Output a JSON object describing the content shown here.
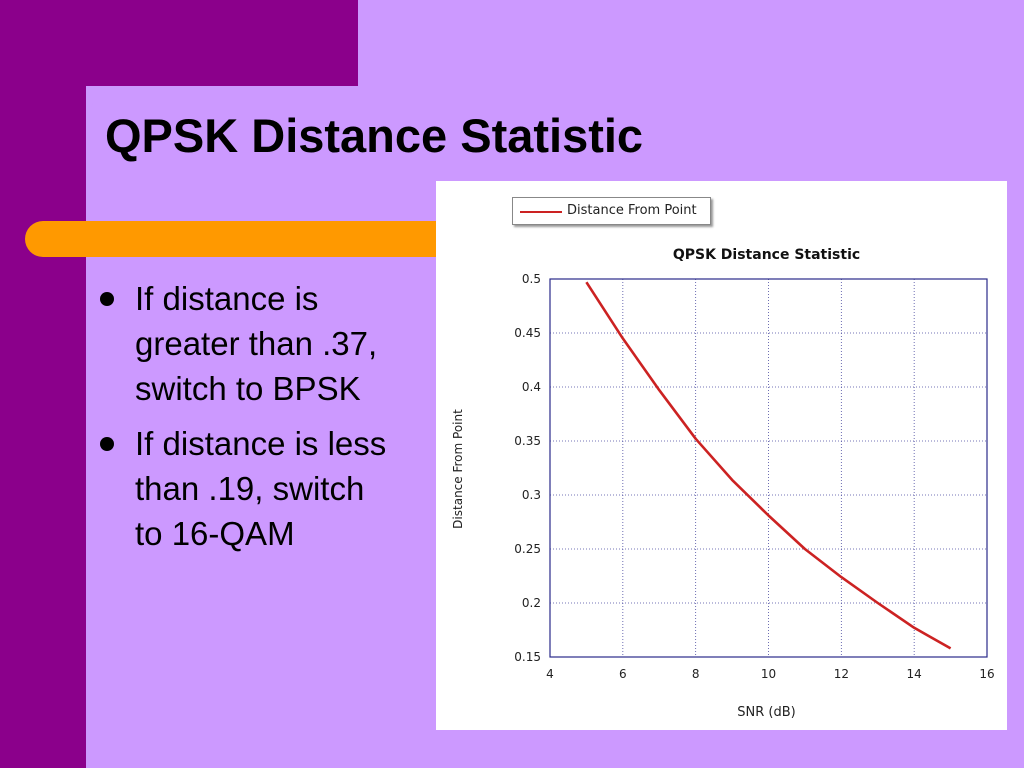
{
  "slide": {
    "title": "QPSK Distance Statistic",
    "bullets": [
      "If distance is greater than .37, switch to BPSK",
      "If distance is less than .19, switch to 16-QAM"
    ]
  },
  "colors": {
    "background": "#cc99ff",
    "band": "#8b008b",
    "accent_bar": "#ff9900",
    "series_line": "#cc2222"
  },
  "chart_data": {
    "type": "line",
    "title": "QPSK Distance Statistic",
    "xlabel": "SNR (dB)",
    "ylabel": "Distance From Point",
    "xlim": [
      4,
      16
    ],
    "ylim": [
      0.15,
      0.5
    ],
    "x_ticks": [
      "4",
      "6",
      "8",
      "10",
      "12",
      "14",
      "16"
    ],
    "y_ticks": [
      "0.15",
      "0.2",
      "0.25",
      "0.3",
      "0.35",
      "0.4",
      "0.45",
      "0.5"
    ],
    "grid": true,
    "legend_position": "top-left",
    "series": [
      {
        "name": "Distance From Point",
        "x": [
          5,
          6,
          7,
          8,
          9,
          10,
          11,
          12,
          13,
          14,
          15
        ],
        "y": [
          0.497,
          0.445,
          0.397,
          0.352,
          0.314,
          0.281,
          0.25,
          0.224,
          0.2,
          0.177,
          0.158
        ]
      }
    ]
  }
}
